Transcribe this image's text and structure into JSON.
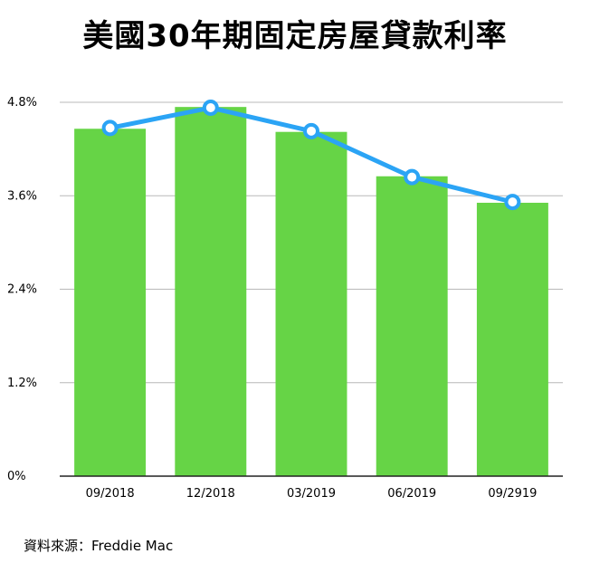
{
  "chart_data": {
    "type": "bar",
    "title": "美國30年期固定房屋貸款利率",
    "categories": [
      "09/2018",
      "12/2018",
      "03/2019",
      "06/2019",
      "09/2919"
    ],
    "series": [
      {
        "type": "bar",
        "values": [
          4.46,
          4.74,
          4.42,
          3.85,
          3.51
        ]
      },
      {
        "type": "line",
        "values": [
          4.47,
          4.73,
          4.43,
          3.84,
          3.52
        ]
      }
    ],
    "yticks": [
      {
        "value": 0,
        "label": "0%"
      },
      {
        "value": 1.2,
        "label": "1.2%"
      },
      {
        "value": 2.4,
        "label": "2.4%"
      },
      {
        "value": 3.6,
        "label": "3.6%"
      },
      {
        "value": 4.8,
        "label": "4.8%"
      }
    ],
    "ylim": [
      0,
      4.8
    ],
    "grid": true,
    "colors": {
      "bar": "#66d446",
      "line": "#2ba4f5",
      "marker_fill": "#ffffff",
      "grid": "#b8b8b8",
      "axis": "#222222"
    }
  },
  "source": "資料來源：Freddie Mac"
}
